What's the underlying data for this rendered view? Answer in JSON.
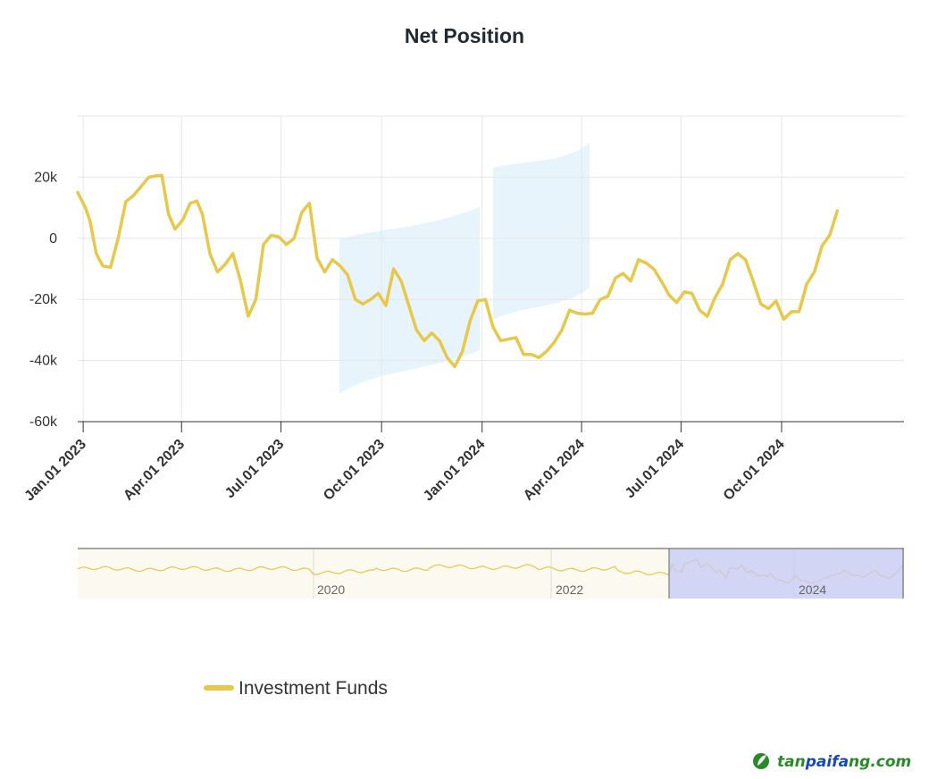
{
  "colors": {
    "series": "#e6c84a",
    "brand_green": "#2a8a2a",
    "brand_blue": "#1a4ab0",
    "navigator_mask": "#c5c8f5"
  },
  "chart_data": {
    "type": "line",
    "title": "Net Position",
    "xlabel": "",
    "ylabel": "",
    "ylim": [
      -60000,
      40000
    ],
    "y_ticks": [
      {
        "value": 20000,
        "label": "20k"
      },
      {
        "value": 0,
        "label": "0"
      },
      {
        "value": -20000,
        "label": "-20k"
      },
      {
        "value": -40000,
        "label": "-40k"
      },
      {
        "value": -60000,
        "label": "-60k"
      }
    ],
    "x_range": [
      "2022-12-27",
      "2025-01-21"
    ],
    "x_ticks": [
      {
        "date": "2023-01-01",
        "label": "Jan.01 2023"
      },
      {
        "date": "2023-04-01",
        "label": "Apr.01 2023"
      },
      {
        "date": "2023-07-01",
        "label": "Jul.01 2023"
      },
      {
        "date": "2023-10-01",
        "label": "Oct.01 2023"
      },
      {
        "date": "2024-01-01",
        "label": "Jan.01 2024"
      },
      {
        "date": "2024-04-01",
        "label": "Apr.01 2024"
      },
      {
        "date": "2024-07-01",
        "label": "Jul.01 2024"
      },
      {
        "date": "2024-10-01",
        "label": "Oct.01 2024"
      }
    ],
    "series": [
      {
        "name": "Investment Funds",
        "points": [
          [
            "2022-12-27",
            15000
          ],
          [
            "2023-01-03",
            10000
          ],
          [
            "2023-01-07",
            6000
          ],
          [
            "2023-01-13",
            -5000
          ],
          [
            "2023-01-19",
            -9000
          ],
          [
            "2023-01-26",
            -9500
          ],
          [
            "2023-02-02",
            0
          ],
          [
            "2023-02-09",
            12000
          ],
          [
            "2023-02-16",
            14000
          ],
          [
            "2023-02-23",
            17000
          ],
          [
            "2023-03-02",
            20000
          ],
          [
            "2023-03-09",
            20500
          ],
          [
            "2023-03-14",
            20600
          ],
          [
            "2023-03-20",
            8000
          ],
          [
            "2023-03-26",
            3000
          ],
          [
            "2023-04-02",
            6000
          ],
          [
            "2023-04-09",
            11500
          ],
          [
            "2023-04-15",
            12200
          ],
          [
            "2023-04-20",
            8000
          ],
          [
            "2023-04-27",
            -5000
          ],
          [
            "2023-05-04",
            -11000
          ],
          [
            "2023-05-11",
            -8500
          ],
          [
            "2023-05-18",
            -5000
          ],
          [
            "2023-05-25",
            -14000
          ],
          [
            "2023-06-01",
            -25500
          ],
          [
            "2023-06-08",
            -20000
          ],
          [
            "2023-06-15",
            -2000
          ],
          [
            "2023-06-22",
            1000
          ],
          [
            "2023-06-29",
            500
          ],
          [
            "2023-07-06",
            -2000
          ],
          [
            "2023-07-13",
            0
          ],
          [
            "2023-07-20",
            8500
          ],
          [
            "2023-07-27",
            11500
          ],
          [
            "2023-08-03",
            -6500
          ],
          [
            "2023-08-10",
            -11000
          ],
          [
            "2023-08-17",
            -7000
          ],
          [
            "2023-08-24",
            -9000
          ],
          [
            "2023-08-31",
            -12000
          ],
          [
            "2023-09-07",
            -20000
          ],
          [
            "2023-09-14",
            -21500
          ],
          [
            "2023-09-21",
            -20000
          ],
          [
            "2023-09-28",
            -18000
          ],
          [
            "2023-10-05",
            -22000
          ],
          [
            "2023-10-12",
            -10000
          ],
          [
            "2023-10-19",
            -14000
          ],
          [
            "2023-10-26",
            -22000
          ],
          [
            "2023-11-02",
            -30000
          ],
          [
            "2023-11-09",
            -33500
          ],
          [
            "2023-11-16",
            -31000
          ],
          [
            "2023-11-23",
            -33500
          ],
          [
            "2023-11-30",
            -39000
          ],
          [
            "2023-12-07",
            -42000
          ],
          [
            "2023-12-14",
            -37000
          ],
          [
            "2023-12-21",
            -27000
          ],
          [
            "2023-12-28",
            -20500
          ],
          [
            "2024-01-04",
            -20000
          ],
          [
            "2024-01-11",
            -29000
          ],
          [
            "2024-01-18",
            -33500
          ],
          [
            "2024-01-25",
            -33000
          ],
          [
            "2024-02-01",
            -32500
          ],
          [
            "2024-02-08",
            -38000
          ],
          [
            "2024-02-15",
            -38000
          ],
          [
            "2024-02-22",
            -39000
          ],
          [
            "2024-02-29",
            -37000
          ],
          [
            "2024-03-07",
            -34000
          ],
          [
            "2024-03-14",
            -30000
          ],
          [
            "2024-03-21",
            -23500
          ],
          [
            "2024-03-28",
            -24500
          ],
          [
            "2024-04-04",
            -24800
          ],
          [
            "2024-04-11",
            -24500
          ],
          [
            "2024-04-18",
            -20000
          ],
          [
            "2024-04-25",
            -19000
          ],
          [
            "2024-05-02",
            -13000
          ],
          [
            "2024-05-09",
            -11500
          ],
          [
            "2024-05-16",
            -14000
          ],
          [
            "2024-05-23",
            -7000
          ],
          [
            "2024-05-30",
            -8000
          ],
          [
            "2024-06-06",
            -10000
          ],
          [
            "2024-06-13",
            -14000
          ],
          [
            "2024-06-20",
            -18500
          ],
          [
            "2024-06-27",
            -21000
          ],
          [
            "2024-07-04",
            -17500
          ],
          [
            "2024-07-11",
            -18000
          ],
          [
            "2024-07-18",
            -23500
          ],
          [
            "2024-07-25",
            -25500
          ],
          [
            "2024-08-01",
            -19500
          ],
          [
            "2024-08-08",
            -15000
          ],
          [
            "2024-08-15",
            -7000
          ],
          [
            "2024-08-22",
            -5000
          ],
          [
            "2024-08-29",
            -7000
          ],
          [
            "2024-09-05",
            -14000
          ],
          [
            "2024-09-12",
            -21500
          ],
          [
            "2024-09-19",
            -23000
          ],
          [
            "2024-09-26",
            -20500
          ],
          [
            "2024-10-03",
            -26500
          ],
          [
            "2024-10-10",
            -24000
          ],
          [
            "2024-10-17",
            -24000
          ],
          [
            "2024-10-24",
            -15000
          ],
          [
            "2024-10-31",
            -11000
          ],
          [
            "2024-11-07",
            -2500
          ],
          [
            "2024-11-14",
            1000
          ],
          [
            "2024-11-21",
            9000
          ]
        ]
      }
    ],
    "navigator": {
      "x_labels": [
        "2020",
        "2022",
        "2024"
      ]
    },
    "legend": {
      "position": "bottom-left",
      "entries": [
        "Investment Funds"
      ]
    }
  },
  "watermark": {
    "site": "tanpaifang.com"
  }
}
